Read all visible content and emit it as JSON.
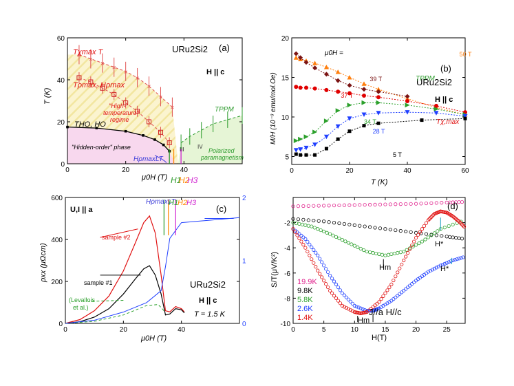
{
  "chart_data": [
    {
      "id": "a",
      "type": "scatter",
      "panel_label": "(a)",
      "title": "URu2Si2",
      "condition": "H || c",
      "xlabel": "μ0H (T)",
      "ylabel": "T (K)",
      "xlim": [
        0,
        60
      ],
      "ylim": [
        0,
        60
      ],
      "xticks": [
        0,
        20,
        40
      ],
      "yticks": [
        0,
        20,
        40,
        60
      ],
      "annotations": {
        "tmax": "Tχmax T",
        "trho": "Tρmax, Hρmax",
        "hight1": "\"High-",
        "hight2": "temperature\"",
        "hight3": "regime",
        "tho": "THO, HO",
        "hidden": "\"Hidden-order\" phase",
        "tppm": "TPPM",
        "polar1": "Polarized",
        "polar2": "paramagnetism",
        "hlt": "HρmaxLT",
        "h1": "H1",
        "h2": "H2",
        "h3": "H3",
        "r3": "III",
        "r4": "IV"
      },
      "series": [
        {
          "name": "Tχmax",
          "x": [
            4,
            8,
            12,
            16,
            20,
            24,
            28,
            32,
            36
          ],
          "y": [
            52,
            50,
            48,
            46,
            44,
            41,
            37,
            32,
            27
          ]
        },
        {
          "name": "Tρmax",
          "x": [
            4,
            8,
            12,
            16,
            20,
            24,
            28,
            32,
            35
          ],
          "y": [
            41,
            39,
            36,
            33,
            29,
            25,
            20,
            15,
            10
          ]
        },
        {
          "name": "THO",
          "x": [
            0,
            10,
            20,
            26,
            30,
            33,
            35
          ],
          "y": [
            17.5,
            17,
            15.5,
            13.5,
            11.5,
            9,
            6
          ]
        },
        {
          "name": "TPPM",
          "x": [
            39,
            42,
            46,
            50,
            55,
            60
          ],
          "y": [
            10,
            13,
            16,
            19,
            21,
            23
          ]
        }
      ]
    },
    {
      "id": "b",
      "type": "line",
      "panel_label": "(b)",
      "title": "URu2Si2",
      "condition": "H || c",
      "xlabel": "T (K)",
      "ylabel": "M/H (10⁻³ emu/mol.Oe)",
      "xlim": [
        0,
        60
      ],
      "ylim": [
        4,
        20
      ],
      "xticks": [
        0,
        20,
        40,
        60
      ],
      "yticks": [
        5,
        10,
        15,
        20
      ],
      "legend_title": "μ0H =",
      "annotations": {
        "tppm": "TPPM",
        "txmax": "Tχ,max"
      },
      "series": [
        {
          "name": "50 T",
          "color": "#ff7f0e",
          "x": [
            1.5,
            3,
            5,
            8,
            12,
            16,
            20,
            25,
            30,
            40,
            50,
            60
          ],
          "y": [
            17.5,
            17.3,
            17.1,
            16.8,
            16.3,
            15.7,
            15,
            14.2,
            13.5,
            12.3,
            11.2,
            10.3
          ]
        },
        {
          "name": "39 T",
          "color": "#7b1414",
          "x": [
            1.5,
            3,
            5,
            8,
            12,
            16,
            20,
            25,
            30,
            40
          ],
          "y": [
            18,
            17.5,
            16.9,
            16.2,
            15.4,
            14.6,
            14,
            13.5,
            13.2,
            12.6
          ]
        },
        {
          "name": "37 T",
          "color": "#e00000",
          "x": [
            1.5,
            3,
            5,
            8,
            12,
            16,
            20,
            25,
            30,
            40,
            50,
            60
          ],
          "y": [
            13.8,
            13.7,
            13.7,
            13.6,
            13.4,
            13.2,
            13,
            12.7,
            12.5,
            12,
            11.4,
            10.6
          ]
        },
        {
          "name": "34 T",
          "color": "#2ca02c",
          "x": [
            1.5,
            3,
            5,
            8,
            12,
            16,
            20,
            25,
            30,
            40,
            50,
            60
          ],
          "y": [
            7,
            7.2,
            7.5,
            8.1,
            9.5,
            10.8,
            11.5,
            11.8,
            11.8,
            11.5,
            11,
            10.3
          ]
        },
        {
          "name": "28 T",
          "color": "#1f3fff",
          "x": [
            1.5,
            3,
            5,
            8,
            12,
            16,
            20,
            25,
            30,
            40,
            50,
            60
          ],
          "y": [
            5.8,
            5.9,
            6.1,
            6.5,
            7.5,
            8.8,
            9.8,
            10.3,
            10.5,
            10.6,
            10.5,
            10.1
          ]
        },
        {
          "name": "5 T",
          "color": "#000000",
          "x": [
            1.5,
            3,
            5,
            8,
            12,
            16,
            20,
            25,
            30,
            45,
            60
          ],
          "y": [
            5.3,
            5.2,
            5.2,
            5.2,
            6,
            7.2,
            8.2,
            8.9,
            9.2,
            9.6,
            9.8
          ]
        }
      ]
    },
    {
      "id": "c",
      "type": "line",
      "panel_label": "(c)",
      "title": "URu2Si2",
      "condition": "H || c",
      "current": "U,I || a",
      "temperature": "T = 1.5 K",
      "xlabel": "μ0H (T)",
      "ylabel": "ρxx (μΩcm)",
      "xlim": [
        0,
        60
      ],
      "ylim": [
        0,
        600
      ],
      "xticks": [
        0,
        20,
        40
      ],
      "yticks": [
        0,
        200,
        400,
        600
      ],
      "y2ticks": [
        0,
        1,
        2
      ],
      "annotations": {
        "hlt": "HρmaxLT",
        "h1": "H1",
        "h2": "H2",
        "h3": "H3",
        "lev1": "(Levallois",
        "lev2": "et al.)"
      },
      "series": [
        {
          "name": "sample #2",
          "color": "#e01010",
          "x": [
            0,
            5,
            10,
            15,
            20,
            24,
            27,
            29,
            31,
            33,
            34.5,
            36,
            38,
            40,
            41
          ],
          "y": [
            0,
            18,
            60,
            130,
            250,
            380,
            480,
            512,
            430,
            230,
            60,
            55,
            80,
            70,
            55
          ]
        },
        {
          "name": "sample #1",
          "color": "#000000",
          "x": [
            0,
            5,
            10,
            15,
            20,
            24,
            27,
            29,
            31,
            33,
            34.5,
            36,
            38,
            40,
            41
          ],
          "y": [
            0,
            8,
            30,
            70,
            140,
            210,
            260,
            275,
            230,
            140,
            40,
            45,
            70,
            65,
            50
          ]
        },
        {
          "name": "Levallois et al.",
          "color": "#2aa02a",
          "x": [
            0,
            10,
            20,
            28,
            32,
            34
          ],
          "y": [
            0,
            10,
            40,
            85,
            90,
            60
          ]
        },
        {
          "name": "right axis",
          "color": "#2040ff",
          "x": [
            0,
            10,
            20,
            28,
            33,
            34.5,
            36,
            40,
            45,
            50,
            55,
            60
          ],
          "y": [
            0,
            0.05,
            0.18,
            0.33,
            0.52,
            0.9,
            1.35,
            1.6,
            1.62,
            1.64,
            1.66,
            1.68
          ]
        }
      ]
    },
    {
      "id": "d",
      "type": "scatter",
      "panel_label": "(d)",
      "condition": "J//a H//c",
      "xlabel": "H(T)",
      "ylabel": "S/T(μV/K²)",
      "xlim": [
        0,
        28
      ],
      "ylim": [
        -10,
        0
      ],
      "xticks": [
        0,
        5,
        10,
        15,
        20,
        25
      ],
      "yticks": [
        -10,
        -8,
        -6,
        -4,
        -2
      ],
      "annotations": {
        "hm1": "Hm",
        "hm2": "Hm",
        "hstar1": "H*",
        "hstar2": "H*"
      },
      "series": [
        {
          "name": "19.9K",
          "color": "#e0208c",
          "x": [
            0,
            5,
            10,
            15,
            20,
            25,
            28
          ],
          "y": [
            -0.7,
            -0.65,
            -0.6,
            -0.55,
            -0.5,
            -0.4,
            -0.35
          ]
        },
        {
          "name": "9.8K",
          "color": "#000000",
          "x": [
            0,
            5,
            10,
            15,
            20,
            25,
            28
          ],
          "y": [
            -1.7,
            -1.9,
            -2.2,
            -2.5,
            -2.8,
            -3.1,
            -3.3
          ]
        },
        {
          "name": "5.8K",
          "color": "#2ca02c",
          "x": [
            0,
            3,
            6,
            9,
            12,
            15,
            18,
            21,
            24,
            28
          ],
          "y": [
            -2,
            -2.3,
            -2.9,
            -3.6,
            -4.3,
            -4.6,
            -4.3,
            -3.5,
            -2.5,
            -1.8
          ]
        },
        {
          "name": "2.6K",
          "color": "#2040ff",
          "x": [
            0,
            2,
            4,
            6,
            8,
            10,
            12,
            13,
            14,
            16,
            18,
            20,
            22,
            24,
            26,
            28
          ],
          "y": [
            -2.5,
            -3.3,
            -4.6,
            -6.2,
            -7.6,
            -8.6,
            -9.0,
            -9.0,
            -8.8,
            -8.2,
            -7.4,
            -6.6,
            -5.9,
            -5.4,
            -5.0,
            -4.7
          ]
        },
        {
          "name": "1.4K",
          "color": "#e01010",
          "x": [
            0,
            2,
            4,
            6,
            8,
            10,
            11,
            12,
            14,
            16,
            18,
            20,
            22,
            23,
            24,
            25,
            26,
            27,
            28
          ],
          "y": [
            -2.5,
            -4,
            -5.8,
            -7.4,
            -8.6,
            -9.1,
            -9.2,
            -9.1,
            -8.3,
            -6.9,
            -5.0,
            -3.2,
            -1.8,
            -1.3,
            -1.1,
            -1.2,
            -1.5,
            -1.9,
            -2.4
          ]
        }
      ]
    }
  ]
}
